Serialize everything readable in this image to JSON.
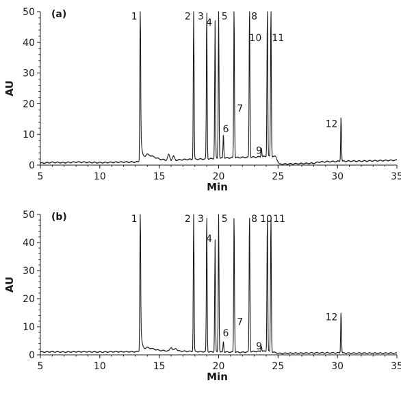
{
  "chart_data": [
    {
      "type": "line",
      "panel_label": "(a)",
      "xlabel": "Min",
      "ylabel": "AU",
      "xlim": [
        5,
        35
      ],
      "ylim": [
        0,
        50
      ],
      "x_ticks": [
        "5",
        "10",
        "15",
        "20",
        "25",
        "30",
        "35"
      ],
      "y_ticks": [
        "0",
        "10",
        "20",
        "30",
        "40",
        "50"
      ],
      "grid": false,
      "baseline": [
        [
          5,
          0.6
        ],
        [
          6,
          0.9
        ],
        [
          7,
          0.8
        ],
        [
          8,
          1.0
        ],
        [
          9,
          0.9
        ],
        [
          10,
          0.8
        ],
        [
          11,
          0.9
        ],
        [
          12,
          1.0
        ],
        [
          13,
          1.0
        ],
        [
          13.3,
          1.1
        ],
        [
          14,
          3.5
        ],
        [
          15,
          2.0
        ],
        [
          15.6,
          1.6
        ],
        [
          15.8,
          3.5
        ],
        [
          16,
          1.5
        ],
        [
          16.2,
          3.0
        ],
        [
          16.4,
          1.6
        ],
        [
          17,
          1.8
        ],
        [
          17.8,
          1.9
        ],
        [
          19,
          2.0
        ],
        [
          20,
          2.2
        ],
        [
          21,
          2.4
        ],
        [
          22,
          2.5
        ],
        [
          23,
          2.6
        ],
        [
          24,
          2.8
        ],
        [
          24.8,
          2.8
        ],
        [
          25.1,
          0.3
        ],
        [
          26,
          0.4
        ],
        [
          27,
          0.5
        ],
        [
          28,
          0.6
        ],
        [
          28.4,
          1.0
        ],
        [
          29,
          1.1
        ],
        [
          30,
          1.2
        ],
        [
          31,
          1.3
        ],
        [
          32,
          1.3
        ],
        [
          33,
          1.4
        ],
        [
          34,
          1.5
        ],
        [
          35,
          1.6
        ]
      ],
      "peaks": [
        {
          "label": "1",
          "x": 13.4,
          "height": 50,
          "tail": true
        },
        {
          "label": "2",
          "x": 17.9,
          "height": 50
        },
        {
          "label": "3",
          "x": 19.0,
          "height": 50
        },
        {
          "label": "4",
          "x": 19.7,
          "height": 45
        },
        {
          "label": "5",
          "x": 20.0,
          "height": 50
        },
        {
          "label": "6",
          "x": 20.4,
          "height": 8
        },
        {
          "label": "7",
          "x": 21.3,
          "height": 50
        },
        {
          "label": "8",
          "x": 22.6,
          "height": 50
        },
        {
          "label": "9",
          "x": 23.6,
          "height": 3
        },
        {
          "label": "10",
          "x": 24.1,
          "height": 50
        },
        {
          "label": "11",
          "x": 24.4,
          "height": 50
        },
        {
          "label": "12",
          "x": 30.3,
          "height": 15
        }
      ],
      "peak_labels": [
        {
          "text": "1",
          "x": 12.9,
          "y": 48.5
        },
        {
          "text": "2",
          "x": 17.4,
          "y": 48.5
        },
        {
          "text": "3",
          "x": 18.5,
          "y": 48.5
        },
        {
          "text": "4",
          "x": 19.2,
          "y": 46.5
        },
        {
          "text": "5",
          "x": 20.5,
          "y": 48.5
        },
        {
          "text": "6",
          "x": 20.6,
          "y": 11.8
        },
        {
          "text": "7",
          "x": 21.8,
          "y": 18.5
        },
        {
          "text": "8",
          "x": 23.0,
          "y": 48.5
        },
        {
          "text": "9",
          "x": 23.4,
          "y": 4.8
        },
        {
          "text": "10",
          "x": 23.1,
          "y": 41.5
        },
        {
          "text": "11",
          "x": 25.0,
          "y": 41.5
        },
        {
          "text": "12",
          "x": 29.5,
          "y": 13.5
        }
      ]
    },
    {
      "type": "line",
      "panel_label": "(b)",
      "xlabel": "Min",
      "ylabel": "AU",
      "xlim": [
        5,
        35
      ],
      "ylim": [
        0,
        50
      ],
      "x_ticks": [
        "5",
        "10",
        "15",
        "20",
        "25",
        "30",
        "35"
      ],
      "y_ticks": [
        "0",
        "10",
        "20",
        "30",
        "40",
        "50"
      ],
      "grid": false,
      "baseline": [
        [
          5,
          1.0
        ],
        [
          6,
          1.1
        ],
        [
          7,
          1.0
        ],
        [
          8,
          1.1
        ],
        [
          9,
          1.1
        ],
        [
          10,
          1.0
        ],
        [
          11,
          1.1
        ],
        [
          12,
          1.1
        ],
        [
          13,
          1.1
        ],
        [
          13.3,
          1.2
        ],
        [
          14,
          2.6
        ],
        [
          15,
          1.6
        ],
        [
          15.8,
          1.4
        ],
        [
          16,
          2.8
        ],
        [
          16.2,
          1.6
        ],
        [
          16.4,
          2.4
        ],
        [
          16.6,
          1.4
        ],
        [
          17,
          1.3
        ],
        [
          18,
          1.2
        ],
        [
          19,
          1.1
        ],
        [
          20,
          1.0
        ],
        [
          21,
          1.0
        ],
        [
          22,
          0.9
        ],
        [
          23,
          1.2
        ],
        [
          24,
          1.3
        ],
        [
          24.8,
          0.8
        ],
        [
          25.1,
          0.5
        ],
        [
          26,
          0.6
        ],
        [
          27,
          0.6
        ],
        [
          28,
          0.7
        ],
        [
          29,
          0.7
        ],
        [
          30,
          0.7
        ],
        [
          31,
          0.6
        ],
        [
          32,
          0.6
        ],
        [
          33,
          0.6
        ],
        [
          34,
          0.6
        ],
        [
          35,
          0.6
        ]
      ],
      "peaks": [
        {
          "label": "1",
          "x": 13.4,
          "height": 50,
          "tail": true
        },
        {
          "label": "2",
          "x": 17.9,
          "height": 50
        },
        {
          "label": "3",
          "x": 19.0,
          "height": 50
        },
        {
          "label": "4",
          "x": 19.7,
          "height": 40
        },
        {
          "label": "5",
          "x": 20.0,
          "height": 50
        },
        {
          "label": "6",
          "x": 20.4,
          "height": 4
        },
        {
          "label": "7",
          "x": 21.3,
          "height": 50
        },
        {
          "label": "8",
          "x": 22.6,
          "height": 50
        },
        {
          "label": "9",
          "x": 23.6,
          "height": 2
        },
        {
          "label": "10",
          "x": 24.1,
          "height": 50
        },
        {
          "label": "11",
          "x": 24.4,
          "height": 50
        },
        {
          "label": "12",
          "x": 30.3,
          "height": 15
        }
      ],
      "peak_labels": [
        {
          "text": "1",
          "x": 12.9,
          "y": 48.5
        },
        {
          "text": "2",
          "x": 17.4,
          "y": 48.5
        },
        {
          "text": "3",
          "x": 18.5,
          "y": 48.5
        },
        {
          "text": "4",
          "x": 19.2,
          "y": 41.5
        },
        {
          "text": "5",
          "x": 20.5,
          "y": 48.5
        },
        {
          "text": "6",
          "x": 20.6,
          "y": 7.8
        },
        {
          "text": "7",
          "x": 21.8,
          "y": 11.8
        },
        {
          "text": "8",
          "x": 23.0,
          "y": 48.5
        },
        {
          "text": "9",
          "x": 23.4,
          "y": 3.2
        },
        {
          "text": "10",
          "x": 24.0,
          "y": 48.5
        },
        {
          "text": "11",
          "x": 25.1,
          "y": 48.5
        },
        {
          "text": "12",
          "x": 29.5,
          "y": 13.5
        }
      ]
    }
  ]
}
